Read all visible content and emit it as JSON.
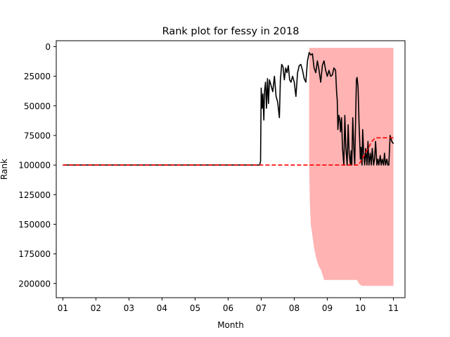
{
  "chart_data": {
    "type": "line",
    "title": "Rank plot for fessy in 2018",
    "xlabel": "Month",
    "ylabel": "Rank",
    "x_ticks": [
      "01",
      "02",
      "03",
      "04",
      "05",
      "06",
      "07",
      "08",
      "09",
      "10",
      "11"
    ],
    "x_range": [
      0.8,
      11.35
    ],
    "y_ticks": [
      0,
      25000,
      50000,
      75000,
      100000,
      125000,
      150000,
      175000,
      200000
    ],
    "y_range": [
      -5000,
      212000
    ],
    "y_inverted": true,
    "grid": false,
    "legend": "none",
    "colors": {
      "rank_line": "#000000",
      "trend_line": "#ff0000",
      "band_fill": "#ffb3b3"
    },
    "series": [
      {
        "style": "solid",
        "color": "#000000",
        "points": [
          [
            1.0,
            100000
          ],
          [
            6.95,
            100000
          ],
          [
            6.98,
            97000
          ],
          [
            7.0,
            35000
          ],
          [
            7.03,
            52000
          ],
          [
            7.05,
            40000
          ],
          [
            7.08,
            62000
          ],
          [
            7.1,
            38000
          ],
          [
            7.13,
            30000
          ],
          [
            7.16,
            52000
          ],
          [
            7.19,
            27000
          ],
          [
            7.22,
            48000
          ],
          [
            7.25,
            28000
          ],
          [
            7.3,
            33000
          ],
          [
            7.35,
            38000
          ],
          [
            7.4,
            25000
          ],
          [
            7.45,
            42000
          ],
          [
            7.5,
            47000
          ],
          [
            7.55,
            60000
          ],
          [
            7.58,
            28000
          ],
          [
            7.62,
            15000
          ],
          [
            7.66,
            17000
          ],
          [
            7.7,
            28000
          ],
          [
            7.74,
            18000
          ],
          [
            7.78,
            22000
          ],
          [
            7.82,
            16000
          ],
          [
            7.86,
            28000
          ],
          [
            7.9,
            30000
          ],
          [
            7.95,
            25000
          ],
          [
            8.0,
            30000
          ],
          [
            8.05,
            42000
          ],
          [
            8.1,
            22000
          ],
          [
            8.15,
            16000
          ],
          [
            8.2,
            15000
          ],
          [
            8.25,
            20000
          ],
          [
            8.3,
            27000
          ],
          [
            8.35,
            30000
          ],
          [
            8.4,
            12000
          ],
          [
            8.45,
            5000
          ],
          [
            8.5,
            7000
          ],
          [
            8.55,
            6000
          ],
          [
            8.6,
            18000
          ],
          [
            8.65,
            22000
          ],
          [
            8.7,
            12000
          ],
          [
            8.75,
            20000
          ],
          [
            8.8,
            30000
          ],
          [
            8.85,
            16000
          ],
          [
            8.9,
            12000
          ],
          [
            8.95,
            20000
          ],
          [
            9.0,
            25000
          ],
          [
            9.05,
            20000
          ],
          [
            9.1,
            25000
          ],
          [
            9.15,
            24000
          ],
          [
            9.2,
            18000
          ],
          [
            9.25,
            20000
          ],
          [
            9.28,
            38000
          ],
          [
            9.3,
            45000
          ],
          [
            9.32,
            70000
          ],
          [
            9.35,
            58000
          ],
          [
            9.38,
            62000
          ],
          [
            9.4,
            72000
          ],
          [
            9.43,
            60000
          ],
          [
            9.46,
            86000
          ],
          [
            9.5,
            100000
          ],
          [
            9.53,
            58000
          ],
          [
            9.56,
            85000
          ],
          [
            9.6,
            100000
          ],
          [
            9.63,
            66000
          ],
          [
            9.66,
            90000
          ],
          [
            9.7,
            100000
          ],
          [
            9.72,
            88000
          ],
          [
            9.74,
            100000
          ],
          [
            9.77,
            60000
          ],
          [
            9.8,
            85000
          ],
          [
            9.83,
            100000
          ],
          [
            9.85,
            70000
          ],
          [
            9.88,
            28000
          ],
          [
            9.9,
            26000
          ],
          [
            9.93,
            34000
          ],
          [
            9.96,
            65000
          ],
          [
            10.0,
            95000
          ],
          [
            10.02,
            85000
          ],
          [
            10.05,
            100000
          ],
          [
            10.07,
            70000
          ],
          [
            10.1,
            90000
          ],
          [
            10.13,
            100000
          ],
          [
            10.16,
            86000
          ],
          [
            10.2,
            100000
          ],
          [
            10.23,
            80000
          ],
          [
            10.26,
            100000
          ],
          [
            10.3,
            90000
          ],
          [
            10.33,
            100000
          ],
          [
            10.36,
            86000
          ],
          [
            10.4,
            100000
          ],
          [
            10.43,
            95000
          ],
          [
            10.46,
            80000
          ],
          [
            10.5,
            100000
          ],
          [
            10.53,
            95000
          ],
          [
            10.56,
            100000
          ],
          [
            10.6,
            92000
          ],
          [
            10.63,
            100000
          ],
          [
            10.66,
            95000
          ],
          [
            10.7,
            100000
          ],
          [
            10.73,
            90000
          ],
          [
            10.76,
            100000
          ],
          [
            10.8,
            95000
          ],
          [
            10.83,
            100000
          ],
          [
            10.86,
            100000
          ],
          [
            10.9,
            75000
          ],
          [
            10.95,
            80000
          ],
          [
            11.0,
            82000
          ]
        ]
      },
      {
        "style": "dashed",
        "color": "#ff0000",
        "points": [
          [
            1.0,
            100000
          ],
          [
            9.95,
            100000
          ],
          [
            10.05,
            95000
          ],
          [
            10.15,
            90000
          ],
          [
            10.25,
            85000
          ],
          [
            10.35,
            80000
          ],
          [
            10.45,
            77000
          ],
          [
            10.55,
            77000
          ],
          [
            11.0,
            77000
          ]
        ]
      }
    ],
    "band": {
      "color": "#ffb3b3",
      "upper": [
        [
          8.45,
          1000
        ],
        [
          11.0,
          1000
        ]
      ],
      "lower": [
        [
          8.45,
          100000
        ],
        [
          8.47,
          130000
        ],
        [
          8.5,
          150000
        ],
        [
          8.55,
          160000
        ],
        [
          8.6,
          170000
        ],
        [
          8.65,
          177000
        ],
        [
          8.7,
          182000
        ],
        [
          8.75,
          186000
        ],
        [
          8.8,
          188000
        ],
        [
          8.85,
          192000
        ],
        [
          8.9,
          197000
        ],
        [
          9.0,
          197000
        ],
        [
          9.5,
          197000
        ],
        [
          9.9,
          197000
        ],
        [
          9.95,
          200000
        ],
        [
          10.0,
          201000
        ],
        [
          10.05,
          202000
        ],
        [
          10.5,
          202000
        ],
        [
          11.0,
          202000
        ]
      ]
    }
  }
}
